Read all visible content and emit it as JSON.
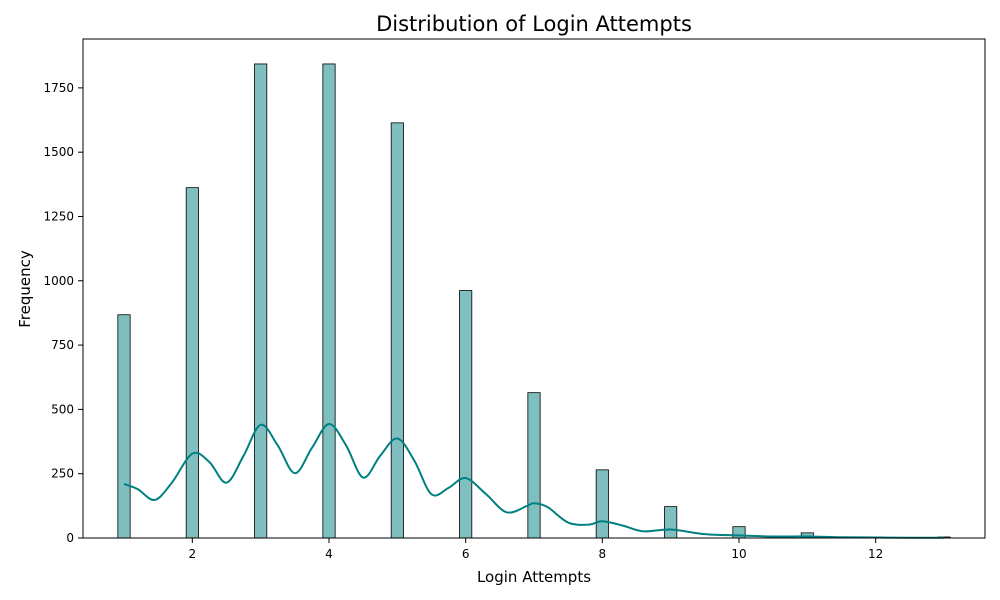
{
  "chart_data": {
    "type": "bar",
    "title": "Distribution of Login Attempts",
    "xlabel": "Login Attempts",
    "ylabel": "Frequency",
    "xlim": [
      0.4,
      13.6
    ],
    "ylim": [
      0,
      1940
    ],
    "x_ticks": [
      2,
      4,
      6,
      8,
      10,
      12
    ],
    "y_ticks": [
      0,
      250,
      500,
      750,
      1000,
      1250,
      1500,
      1750
    ],
    "bar_width": 0.18,
    "x": [
      1,
      2,
      3,
      4,
      5,
      6,
      7,
      8,
      9,
      10,
      11,
      12,
      13
    ],
    "values": [
      868,
      1362,
      1843,
      1843,
      1614,
      962,
      565,
      265,
      122,
      44,
      20,
      4,
      4
    ],
    "kde": {
      "x": [
        1.0,
        1.2,
        1.45,
        1.7,
        2.0,
        2.25,
        2.5,
        2.75,
        3.0,
        3.25,
        3.5,
        3.75,
        4.0,
        4.25,
        4.5,
        4.75,
        5.0,
        5.25,
        5.5,
        5.75,
        6.0,
        6.3,
        6.6,
        6.9,
        7.0,
        7.2,
        7.5,
        7.8,
        8.0,
        8.3,
        8.6,
        9.0,
        9.5,
        10.0,
        10.5,
        11.0,
        11.5,
        12.0,
        12.5,
        13.0
      ],
      "y": [
        210,
        190,
        148,
        215,
        328,
        295,
        215,
        320,
        440,
        360,
        252,
        350,
        443,
        360,
        235,
        320,
        387,
        300,
        170,
        195,
        233,
        170,
        100,
        125,
        135,
        120,
        60,
        52,
        65,
        48,
        26,
        33,
        15,
        10,
        6,
        6,
        3,
        2,
        1,
        1
      ]
    },
    "colors": {
      "bar_fill": "#7fbfbf",
      "bar_edge": "#000000",
      "kde_line": "#008080"
    },
    "grid": false
  }
}
